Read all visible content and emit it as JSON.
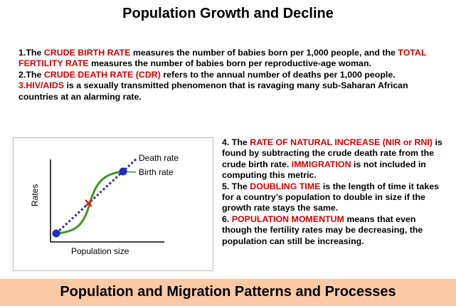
{
  "header": {
    "title": "Population Growth and Decline"
  },
  "intro": {
    "p1": {
      "num": "1.The ",
      "term1": "CRUDE BIRTH RATE",
      "text1": " measures the number of babies born per 1,000 people, and the ",
      "term2": "TOTAL FERTILITY RATE",
      "text2": " measures the number of babies born per reproductive-age woman."
    },
    "p2": {
      "num": "2.The ",
      "term": "CRUDE DEATH RATE (CDR)",
      "text": " refers to the annual number of deaths per 1,000 people."
    },
    "p3": {
      "term": "3.HIV/AIDS",
      "text": " is a sexually transmitted phenomenon that is ravaging many sub-Saharan African countries at an alarming rate."
    }
  },
  "diagram": {
    "y_label": "Rates",
    "x_label": "Population size",
    "death_label": "Death rate",
    "birth_label": "Birth rate",
    "colors": {
      "birth": "#3a9b1e",
      "death": "#2a2ab0",
      "point": "#1c2fc2",
      "cross": "#e02020"
    }
  },
  "right": {
    "p4": {
      "num": "4. The ",
      "term1": "RATE OF NATURAL INCREASE (NIR or RNI)",
      "text1": " is found by subtracting the crude death rate from the crude birth rate. ",
      "term2": "IMMIGRATION",
      "text2": " is not included in computing this metric."
    },
    "p5": {
      "num": "5. The ",
      "term": "DOUBLING TIME",
      "text": " is the length of time it takes for a country’s population to double in size if the growth rate stays the same."
    },
    "p6": {
      "num": "6. ",
      "term": "POPULATION MOMENTUM",
      "text": " means that even though the fertility rates may be decreasing, the population can still be increasing."
    }
  },
  "footer": {
    "title": "Population and Migration Patterns and Processes"
  }
}
